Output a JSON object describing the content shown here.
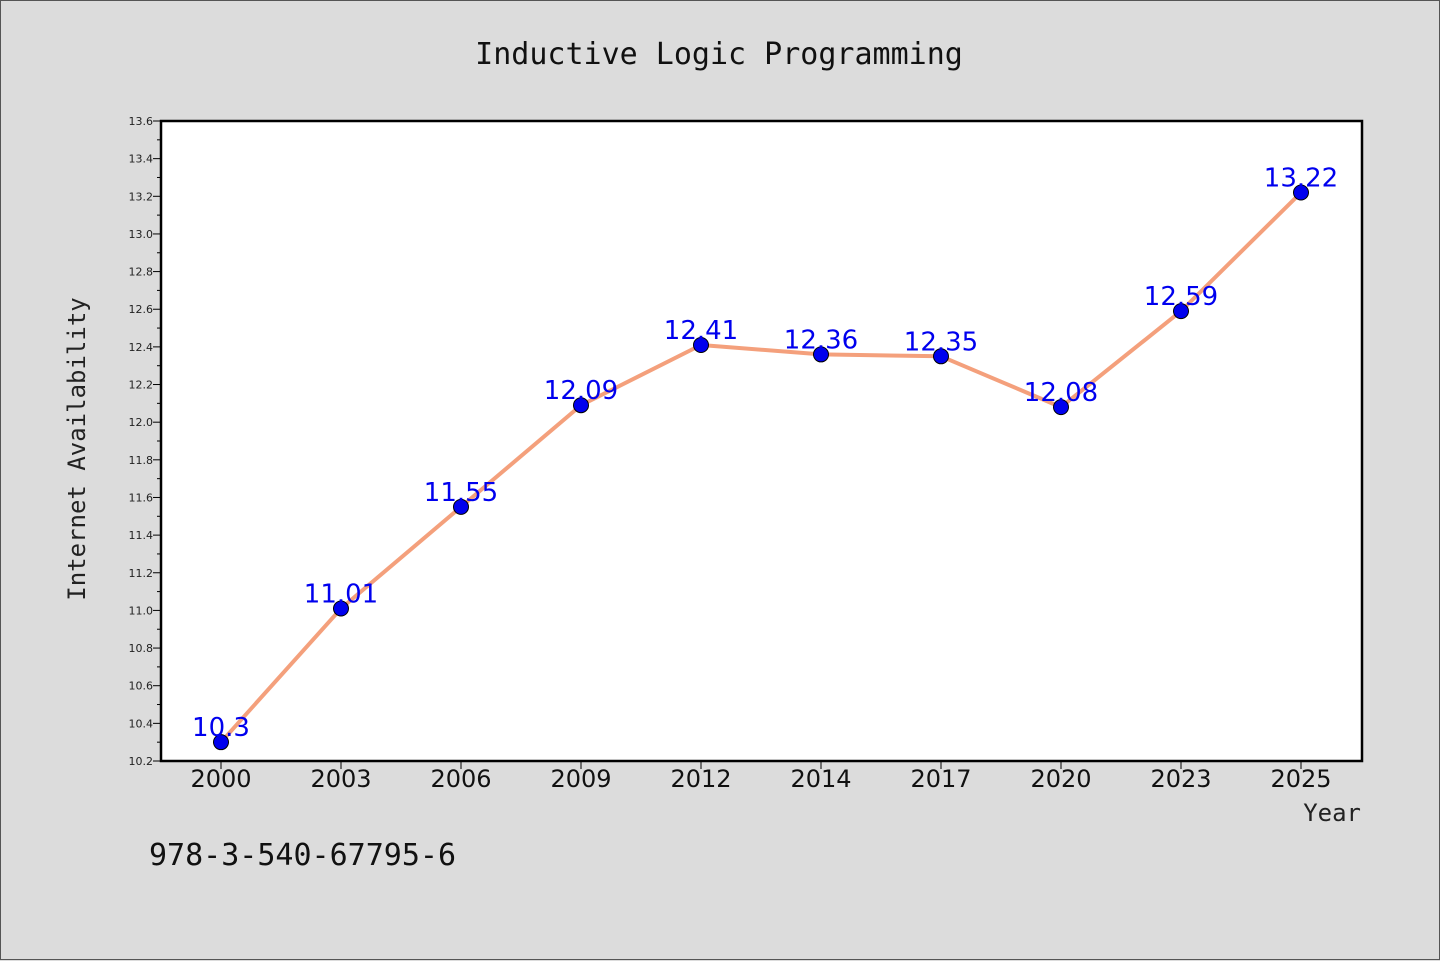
{
  "chart_data": {
    "type": "line",
    "title": "Inductive Logic Programming",
    "xlabel": "Year",
    "ylabel": "Internet Availability",
    "x": [
      "2000",
      "2003",
      "2006",
      "2009",
      "2012",
      "2014",
      "2017",
      "2020",
      "2023",
      "2025"
    ],
    "series": [
      {
        "values": [
          10.3,
          11.01,
          11.55,
          12.09,
          12.41,
          12.36,
          12.35,
          12.08,
          12.59,
          13.22
        ],
        "labels": [
          "10.3",
          "11.01",
          "11.55",
          "12.09",
          "12.41",
          "12.36",
          "12.35",
          "12.08",
          "12.59",
          "13.22"
        ],
        "line_color": "#f4a07c",
        "marker_color": "#0000ee"
      }
    ],
    "ylim": [
      10.2,
      13.6
    ],
    "yticks": [
      "10.2",
      "10.4",
      "10.6",
      "10.8",
      "11.0",
      "11.2",
      "11.4",
      "11.6",
      "11.8",
      "12.0",
      "12.2",
      "12.4",
      "12.6",
      "12.8",
      "13.0",
      "13.2",
      "13.4",
      "13.6"
    ],
    "grid": false,
    "legend": "none"
  },
  "footnote": "978-3-540-67795-6"
}
